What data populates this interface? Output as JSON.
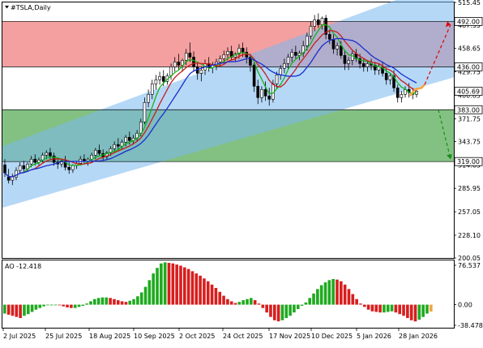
{
  "chart_data": {
    "type": "candlestick",
    "symbol_title": "#TSLA,Daily",
    "price_ticks": [
      "515.45",
      "487.55",
      "458.65",
      "429.75",
      "400.85",
      "371.75",
      "343.75",
      "314.85",
      "285.95",
      "257.05",
      "228.10",
      "200.05"
    ],
    "price_ylim": [
      200.05,
      515.45
    ],
    "x_tick_labels": [
      "2 Jul 2025",
      "25 Jul 2025",
      "18 Aug 2025",
      "10 Sep 2025",
      "2 Oct 2025",
      "24 Oct 2025",
      "17 Nov 2025",
      "10 Dec 2025",
      "5 Jan 2026",
      "28 Jan 2026"
    ],
    "levels": [
      {
        "value": 492.0,
        "label": "492.00",
        "color": "#000000"
      },
      {
        "value": 436.0,
        "label": "436.00",
        "color": "#000000"
      },
      {
        "value": 405.69,
        "label": "405.69",
        "color": "#000000"
      },
      {
        "value": 383.0,
        "label": "383.00",
        "color": "#000000"
      },
      {
        "value": 319.0,
        "label": "319.00",
        "color": "#000000"
      }
    ],
    "zones": [
      {
        "from": 436.0,
        "to": 492.0,
        "color": "#f08080"
      },
      {
        "from": 319.0,
        "to": 383.0,
        "color": "#5aac5a"
      }
    ],
    "channel": {
      "color": "#7ab8f0"
    },
    "ma_colors": {
      "fast": "#18b318",
      "mid": "#c81e1e",
      "slow": "#1a2ed0"
    },
    "candles": [
      [
        315,
        322,
        305,
        300
      ],
      [
        300,
        310,
        296,
        292
      ],
      [
        296,
        304,
        300,
        290
      ],
      [
        300,
        312,
        308,
        296
      ],
      [
        308,
        318,
        314,
        304
      ],
      [
        314,
        320,
        310,
        306
      ],
      [
        310,
        318,
        316,
        306
      ],
      [
        316,
        326,
        322,
        312
      ],
      [
        322,
        328,
        318,
        314
      ],
      [
        318,
        324,
        321,
        314
      ],
      [
        321,
        330,
        327,
        318
      ],
      [
        327,
        333,
        330,
        322
      ],
      [
        330,
        336,
        326,
        322
      ],
      [
        326,
        330,
        318,
        314
      ],
      [
        318,
        324,
        316,
        310
      ],
      [
        316,
        322,
        320,
        312
      ],
      [
        320,
        326,
        312,
        308
      ],
      [
        312,
        318,
        309,
        304
      ],
      [
        309,
        316,
        314,
        305
      ],
      [
        314,
        320,
        317,
        310
      ],
      [
        317,
        326,
        322,
        314
      ],
      [
        322,
        328,
        319,
        316
      ],
      [
        319,
        324,
        322,
        314
      ],
      [
        322,
        330,
        327,
        318
      ],
      [
        327,
        336,
        333,
        322
      ],
      [
        333,
        340,
        329,
        326
      ],
      [
        329,
        334,
        325,
        320
      ],
      [
        325,
        332,
        330,
        322
      ],
      [
        330,
        338,
        335,
        326
      ],
      [
        335,
        344,
        340,
        330
      ],
      [
        340,
        348,
        338,
        334
      ],
      [
        338,
        346,
        343,
        334
      ],
      [
        343,
        352,
        349,
        338
      ],
      [
        349,
        356,
        345,
        340
      ],
      [
        345,
        352,
        348,
        340
      ],
      [
        348,
        358,
        354,
        344
      ],
      [
        354,
        372,
        368,
        350
      ],
      [
        368,
        398,
        392,
        365
      ],
      [
        392,
        408,
        402,
        386
      ],
      [
        402,
        420,
        415,
        396
      ],
      [
        415,
        426,
        420,
        408
      ],
      [
        420,
        430,
        424,
        414
      ],
      [
        424,
        432,
        418,
        412
      ],
      [
        418,
        428,
        425,
        414
      ],
      [
        425,
        440,
        436,
        420
      ],
      [
        436,
        448,
        442,
        430
      ],
      [
        442,
        452,
        438,
        432
      ],
      [
        438,
        446,
        444,
        430
      ],
      [
        444,
        458,
        453,
        438
      ],
      [
        453,
        466,
        448,
        442
      ],
      [
        448,
        455,
        436,
        430
      ],
      [
        436,
        442,
        428,
        420
      ],
      [
        428,
        436,
        432,
        418
      ],
      [
        432,
        445,
        440,
        426
      ],
      [
        440,
        448,
        435,
        430
      ],
      [
        435,
        442,
        438,
        428
      ],
      [
        438,
        446,
        442,
        432
      ],
      [
        442,
        450,
        446,
        436
      ],
      [
        446,
        456,
        451,
        440
      ],
      [
        451,
        460,
        455,
        444
      ],
      [
        455,
        462,
        448,
        444
      ],
      [
        448,
        454,
        452,
        442
      ],
      [
        452,
        464,
        459,
        446
      ],
      [
        459,
        466,
        454,
        448
      ],
      [
        454,
        460,
        448,
        440
      ],
      [
        448,
        452,
        438,
        430
      ],
      [
        438,
        442,
        412,
        405
      ],
      [
        412,
        420,
        398,
        390
      ],
      [
        398,
        412,
        408,
        392
      ],
      [
        408,
        418,
        400,
        394
      ],
      [
        400,
        410,
        396,
        388
      ],
      [
        396,
        420,
        415,
        392
      ],
      [
        415,
        430,
        426,
        410
      ],
      [
        426,
        438,
        434,
        420
      ],
      [
        434,
        446,
        440,
        428
      ],
      [
        440,
        452,
        448,
        434
      ],
      [
        448,
        458,
        454,
        442
      ],
      [
        454,
        462,
        450,
        446
      ],
      [
        450,
        456,
        453,
        444
      ],
      [
        453,
        468,
        462,
        448
      ],
      [
        462,
        478,
        474,
        456
      ],
      [
        474,
        492,
        486,
        470
      ],
      [
        486,
        500,
        494,
        480
      ],
      [
        494,
        502,
        488,
        484
      ],
      [
        488,
        498,
        496,
        482
      ],
      [
        496,
        500,
        476,
        470
      ],
      [
        476,
        482,
        470,
        464
      ],
      [
        470,
        476,
        458,
        452
      ],
      [
        458,
        466,
        462,
        450
      ],
      [
        462,
        468,
        450,
        446
      ],
      [
        450,
        456,
        440,
        432
      ],
      [
        440,
        448,
        444,
        432
      ],
      [
        444,
        456,
        452,
        438
      ],
      [
        452,
        458,
        446,
        442
      ],
      [
        446,
        452,
        440,
        434
      ],
      [
        440,
        446,
        436,
        430
      ],
      [
        436,
        444,
        440,
        430
      ],
      [
        440,
        446,
        438,
        432
      ],
      [
        438,
        442,
        432,
        426
      ],
      [
        432,
        440,
        436,
        426
      ],
      [
        436,
        442,
        428,
        424
      ],
      [
        428,
        434,
        420,
        414
      ],
      [
        420,
        428,
        425,
        414
      ],
      [
        425,
        432,
        410,
        405
      ],
      [
        410,
        414,
        398,
        392
      ],
      [
        398,
        406,
        402,
        392
      ],
      [
        402,
        412,
        408,
        398
      ],
      [
        408,
        416,
        404,
        398
      ],
      [
        404,
        410,
        402,
        396
      ],
      [
        402,
        410,
        406,
        398
      ]
    ],
    "ao": {
      "label": "AO -12.418",
      "ticks": [
        "76.537",
        "0.00",
        "-38.478"
      ],
      "ylim": [
        -38.478,
        76.537
      ],
      "values": [
        -16,
        -18,
        -20,
        -22,
        -24,
        -20,
        -17,
        -13,
        -9,
        -6,
        -3,
        -1,
        0,
        0,
        -1,
        -3,
        -5,
        -6,
        -6,
        -4,
        -2,
        2,
        6,
        10,
        12,
        13,
        13,
        12,
        10,
        8,
        6,
        5,
        7,
        10,
        15,
        22,
        32,
        44,
        56,
        66,
        74,
        76,
        75,
        74,
        72,
        70,
        67,
        64,
        60,
        56,
        52,
        47,
        42,
        36,
        30,
        23,
        16,
        10,
        6,
        3,
        5,
        8,
        10,
        12,
        8,
        2,
        -6,
        -14,
        -22,
        -28,
        -30,
        -28,
        -24,
        -20,
        -14,
        -8,
        -2,
        4,
        12,
        20,
        28,
        35,
        40,
        44,
        46,
        45,
        42,
        36,
        28,
        19,
        10,
        2,
        -4,
        -9,
        -12,
        -13,
        -14,
        -14,
        -13,
        -12,
        -14,
        -17,
        -20,
        -24,
        -28,
        -30,
        -27,
        -22,
        -16,
        -12.418
      ]
    }
  }
}
